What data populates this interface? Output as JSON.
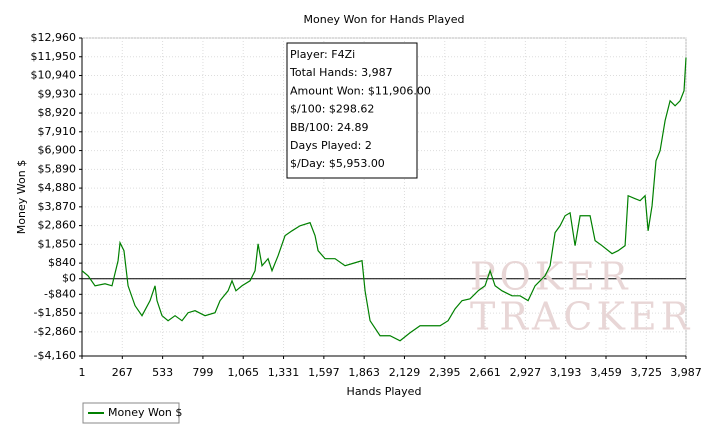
{
  "chart_data": {
    "type": "line",
    "title": "Money Won for Hands Played",
    "xlabel": "Hands Played",
    "ylabel": "Money Won $",
    "x": [
      1,
      41,
      87,
      153,
      199,
      239,
      252,
      278,
      305,
      351,
      397,
      450,
      483,
      496,
      529,
      569,
      615,
      661,
      701,
      747,
      813,
      879,
      912,
      965,
      991,
      1017,
      1057,
      1110,
      1143,
      1163,
      1189,
      1229,
      1255,
      1295,
      1341,
      1387,
      1440,
      1506,
      1539,
      1559,
      1605,
      1671,
      1737,
      1803,
      1849,
      1869,
      1902,
      1968,
      2034,
      2100,
      2166,
      2232,
      2298,
      2364,
      2417,
      2463,
      2509,
      2562,
      2615,
      2661,
      2694,
      2727,
      2773,
      2839,
      2892,
      2945,
      2991,
      3024,
      3057,
      3090,
      3123,
      3156,
      3189,
      3222,
      3255,
      3288,
      3354,
      3387,
      3433,
      3499,
      3539,
      3585,
      3605,
      3651,
      3684,
      3717,
      3737,
      3763,
      3789,
      3816,
      3849,
      3882,
      3915,
      3948,
      3974,
      3987
    ],
    "series": [
      {
        "name": "Money Won $",
        "color": "#008000",
        "values": [
          430,
          160,
          -380,
          -270,
          -380,
          970,
          1940,
          1510,
          -380,
          -1450,
          -1990,
          -1180,
          -380,
          -1180,
          -1990,
          -2260,
          -1990,
          -2260,
          -1830,
          -1720,
          -1990,
          -1830,
          -1180,
          -650,
          -110,
          -650,
          -380,
          -110,
          430,
          1880,
          700,
          1080,
          430,
          1240,
          2320,
          2580,
          2850,
          3020,
          2320,
          1510,
          1080,
          1080,
          700,
          860,
          970,
          -650,
          -2260,
          -3070,
          -3070,
          -3340,
          -2910,
          -2530,
          -2530,
          -2530,
          -2260,
          -1620,
          -1180,
          -1080,
          -650,
          -380,
          430,
          -380,
          -650,
          -920,
          -920,
          -1180,
          -380,
          -110,
          160,
          700,
          2480,
          2850,
          3390,
          3550,
          1780,
          3390,
          3390,
          2050,
          1780,
          1350,
          1510,
          1780,
          4470,
          4310,
          4200,
          4470,
          2580,
          3930,
          6350,
          6890,
          8510,
          9580,
          9310,
          9580,
          10120,
          11906
        ]
      }
    ],
    "xlim": [
      1,
      3987
    ],
    "ylim": [
      -4160,
      12960
    ],
    "xticks": [
      1,
      267,
      533,
      799,
      {
        "value": 1065,
        "label": "1,065"
      },
      {
        "value": 1331,
        "label": "1,331"
      },
      {
        "value": 1597,
        "label": "1,597"
      },
      {
        "value": 1863,
        "label": "1,863"
      },
      {
        "value": 2129,
        "label": "2,129"
      },
      {
        "value": 2395,
        "label": "2,395"
      },
      {
        "value": 2661,
        "label": "2,661"
      },
      {
        "value": 2927,
        "label": "2,927"
      },
      {
        "value": 3193,
        "label": "3,193"
      },
      {
        "value": 3459,
        "label": "3,459"
      },
      {
        "value": 3725,
        "label": "3,725"
      },
      {
        "value": 3987,
        "label": "3,987"
      }
    ],
    "yticks": [
      {
        "value": -4160,
        "label": "-$4,160"
      },
      {
        "value": -2860,
        "label": "-$2,860"
      },
      {
        "value": -1850,
        "label": "-$1,850"
      },
      {
        "value": -840,
        "label": "-$840"
      },
      {
        "value": 0,
        "label": "$0"
      },
      {
        "value": 840,
        "label": "$840"
      },
      {
        "value": 1850,
        "label": "$1,850"
      },
      {
        "value": 2860,
        "label": "$2,860"
      },
      {
        "value": 3870,
        "label": "$3,870"
      },
      {
        "value": 4880,
        "label": "$4,880"
      },
      {
        "value": 5890,
        "label": "$5,890"
      },
      {
        "value": 6900,
        "label": "$6,900"
      },
      {
        "value": 7910,
        "label": "$7,910"
      },
      {
        "value": 8920,
        "label": "$8,920"
      },
      {
        "value": 9930,
        "label": "$9,930"
      },
      {
        "value": 10940,
        "label": "$10,940"
      },
      {
        "value": 11950,
        "label": "$11,950"
      },
      {
        "value": 12960,
        "label": "$12,960"
      }
    ],
    "grid": true,
    "legend": "bottom-left",
    "annotations": [
      "Player: F4Zi",
      "Total Hands: 3,987",
      "Amount Won: $11,906.00",
      "$/100: $298.62",
      "BB/100: 24.89",
      "Days Played: 2",
      "$/Day: $5,953.00"
    ],
    "watermark": [
      "POKER",
      "TRACKER"
    ]
  }
}
